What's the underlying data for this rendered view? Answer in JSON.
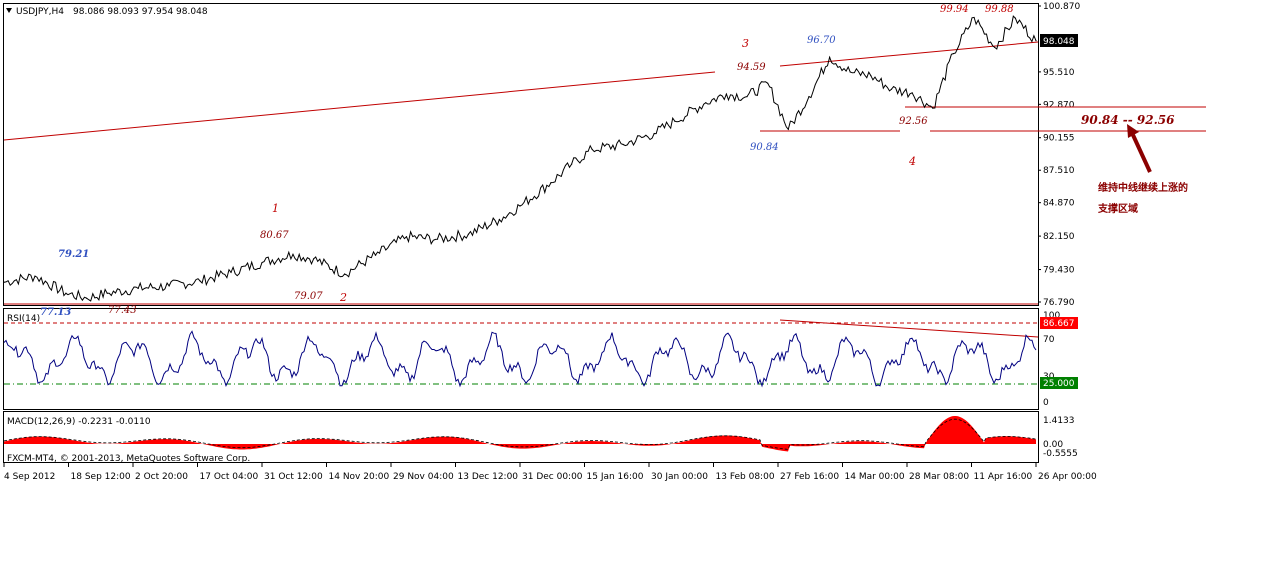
{
  "chart_data": [
    {
      "type": "line",
      "panel": "price",
      "title": "USDJPY,H4",
      "ohlc_readout": "98.086 98.093 97.954 98.048",
      "current_price": "98.048",
      "y_ticks": [
        "100.870",
        "98.048",
        "95.510",
        "92.870",
        "90.155",
        "87.510",
        "84.870",
        "82.150",
        "79.430",
        "76.790"
      ],
      "ylim": [
        76.79,
        100.87
      ],
      "x_ticks": [
        "4 Sep 2012",
        "18 Sep 12:00",
        "2 Oct 20:00",
        "17 Oct 04:00",
        "31 Oct 12:00",
        "14 Nov 20:00",
        "29 Nov 04:00",
        "13 Dec 12:00",
        "31 Dec 00:00",
        "15 Jan 16:00",
        "30 Jan 00:00",
        "13 Feb 08:00",
        "27 Feb 16:00",
        "14 Mar 00:00",
        "28 Mar 08:00",
        "11 Apr 16:00",
        "26 Apr 00:00"
      ],
      "x": [
        0,
        0.03,
        0.06,
        0.08,
        0.1,
        0.13,
        0.16,
        0.19,
        0.22,
        0.25,
        0.28,
        0.3,
        0.33,
        0.36,
        0.39,
        0.42,
        0.45,
        0.48,
        0.5,
        0.53,
        0.55,
        0.57,
        0.6,
        0.63,
        0.65,
        0.68,
        0.7,
        0.72,
        0.74,
        0.76,
        0.78,
        0.8,
        0.82,
        0.84,
        0.86,
        0.88,
        0.9,
        0.92,
        0.94,
        0.96,
        0.98,
        1.0
      ],
      "series": [
        {
          "values": [
            78.4,
            78.9,
            77.5,
            77.1,
            77.5,
            77.9,
            78.1,
            78.5,
            79.2,
            80.0,
            80.67,
            80.3,
            79.07,
            80.6,
            82.1,
            81.9,
            82.3,
            83.5,
            84.6,
            86.5,
            88.0,
            89.2,
            89.6,
            90.5,
            91.5,
            93.0,
            93.7,
            93.5,
            94.59,
            90.84,
            93.5,
            96.7,
            95.5,
            95.2,
            94.1,
            93.8,
            92.56,
            97.0,
            99.94,
            97.5,
            99.88,
            98.048
          ]
        }
      ],
      "annotations": {
        "wave_labels": [
          "1",
          "2",
          "3",
          "4"
        ],
        "price_labels": [
          "79.21",
          "77.13",
          "77.43",
          "80.67",
          "79.07",
          "94.59",
          "96.70",
          "90.84",
          "92.56",
          "99.94",
          "99.88"
        ],
        "zone_label": "90.84 -- 92.56",
        "note_line1": "维持中线继续上涨的",
        "note_line2": "支撑区域"
      }
    },
    {
      "type": "line",
      "panel": "rsi",
      "title": "RSI(14)",
      "current_value": "86.667",
      "lower_level": "25.000",
      "y_ticks": [
        "100",
        "70",
        "30",
        "0"
      ],
      "ylim": [
        0,
        100
      ]
    },
    {
      "type": "area",
      "panel": "macd",
      "title": "MACD(12,26,9) -0.2231 -0.0110",
      "y_ticks": [
        "1.4133",
        "0.00",
        "-0.5555"
      ],
      "ylim": [
        -0.5555,
        1.4133
      ]
    }
  ],
  "copyright": "FXCM-MT4, © 2001-2013, MetaQuotes Software Corp.",
  "colors": {
    "price": "#000000",
    "trend": "#c00000",
    "rsi": "#000080",
    "macd": "#ff0000",
    "blue_label": "#3050c0",
    "dark_red": "#8b0000"
  }
}
